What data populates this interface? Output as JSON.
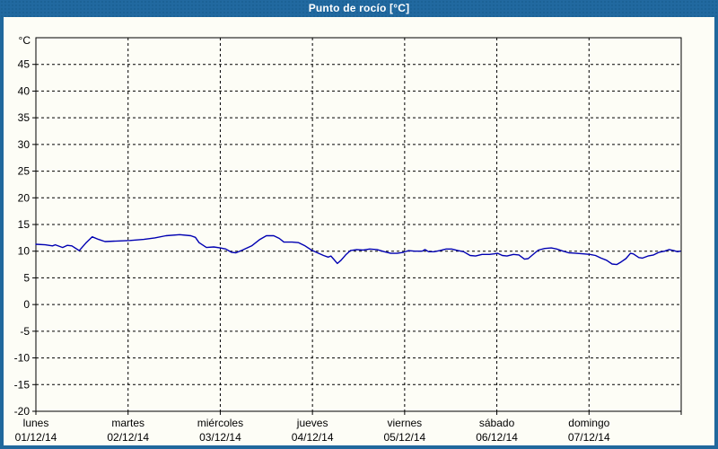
{
  "window": {
    "title": "Punto de rocío [°C]"
  },
  "colors": {
    "titlebar_bg": "#2169a0",
    "titlebar_text": "#ffffff",
    "frame_border": "#20689d",
    "content_bg": "#fdfdf6",
    "axis": "#000000",
    "grid": "#000000",
    "tick_label": "#000000",
    "line": "#0000b2"
  },
  "chart_data": {
    "type": "line",
    "title": "Punto de rocío [°C]",
    "unit_label": "°C",
    "grid": "dashed",
    "legend": "none",
    "ylim": [
      -20,
      50
    ],
    "ytick_step": 5,
    "yticks": [
      -20,
      -15,
      -10,
      -5,
      0,
      5,
      10,
      15,
      20,
      25,
      30,
      35,
      40,
      45
    ],
    "x_days": [
      {
        "name": "lunes",
        "date": "01/12/14"
      },
      {
        "name": "martes",
        "date": "02/12/14"
      },
      {
        "name": "miércoles",
        "date": "03/12/14"
      },
      {
        "name": "jueves",
        "date": "04/12/14"
      },
      {
        "name": "viernes",
        "date": "05/12/14"
      },
      {
        "name": "sábado",
        "date": "06/12/14"
      },
      {
        "name": "domingo",
        "date": "07/12/14"
      }
    ],
    "series": [
      {
        "name": "Punto de rocío",
        "color": "#0000b2",
        "points": [
          [
            0.0,
            11.3
          ],
          [
            0.1,
            11.2
          ],
          [
            0.18,
            11.0
          ],
          [
            0.21,
            11.2
          ],
          [
            0.29,
            10.7
          ],
          [
            0.34,
            11.1
          ],
          [
            0.39,
            11.0
          ],
          [
            0.47,
            10.1
          ],
          [
            0.54,
            11.5
          ],
          [
            0.61,
            12.7
          ],
          [
            0.68,
            12.2
          ],
          [
            0.75,
            11.8
          ],
          [
            0.88,
            11.9
          ],
          [
            1.02,
            12.0
          ],
          [
            1.17,
            12.2
          ],
          [
            1.29,
            12.5
          ],
          [
            1.41,
            12.9
          ],
          [
            1.56,
            13.1
          ],
          [
            1.68,
            12.9
          ],
          [
            1.73,
            12.6
          ],
          [
            1.77,
            11.6
          ],
          [
            1.85,
            10.7
          ],
          [
            1.93,
            10.8
          ],
          [
            2.0,
            10.6
          ],
          [
            2.06,
            10.4
          ],
          [
            2.12,
            9.8
          ],
          [
            2.17,
            9.7
          ],
          [
            2.24,
            10.2
          ],
          [
            2.34,
            11.0
          ],
          [
            2.43,
            12.2
          ],
          [
            2.5,
            12.9
          ],
          [
            2.58,
            12.9
          ],
          [
            2.64,
            12.4
          ],
          [
            2.69,
            11.7
          ],
          [
            2.78,
            11.7
          ],
          [
            2.85,
            11.6
          ],
          [
            2.92,
            11.0
          ],
          [
            2.99,
            10.2
          ],
          [
            3.04,
            9.8
          ],
          [
            3.12,
            9.2
          ],
          [
            3.17,
            8.9
          ],
          [
            3.2,
            9.1
          ],
          [
            3.23,
            8.5
          ],
          [
            3.27,
            7.7
          ],
          [
            3.31,
            8.3
          ],
          [
            3.36,
            9.3
          ],
          [
            3.41,
            10.1
          ],
          [
            3.48,
            10.3
          ],
          [
            3.55,
            10.2
          ],
          [
            3.62,
            10.4
          ],
          [
            3.7,
            10.3
          ],
          [
            3.78,
            9.9
          ],
          [
            3.85,
            9.6
          ],
          [
            3.92,
            9.6
          ],
          [
            3.99,
            9.8
          ],
          [
            4.04,
            10.1
          ],
          [
            4.11,
            10.0
          ],
          [
            4.19,
            10.0
          ],
          [
            4.22,
            10.3
          ],
          [
            4.26,
            9.9
          ],
          [
            4.32,
            9.9
          ],
          [
            4.38,
            10.1
          ],
          [
            4.45,
            10.4
          ],
          [
            4.51,
            10.4
          ],
          [
            4.58,
            10.1
          ],
          [
            4.64,
            9.9
          ],
          [
            4.71,
            9.2
          ],
          [
            4.77,
            9.1
          ],
          [
            4.84,
            9.4
          ],
          [
            4.92,
            9.4
          ],
          [
            4.97,
            9.5
          ],
          [
            5.01,
            9.6
          ],
          [
            5.06,
            9.2
          ],
          [
            5.11,
            9.1
          ],
          [
            5.18,
            9.4
          ],
          [
            5.24,
            9.3
          ],
          [
            5.3,
            8.5
          ],
          [
            5.34,
            8.6
          ],
          [
            5.38,
            9.2
          ],
          [
            5.45,
            10.2
          ],
          [
            5.52,
            10.5
          ],
          [
            5.59,
            10.6
          ],
          [
            5.65,
            10.4
          ],
          [
            5.72,
            10.0
          ],
          [
            5.78,
            9.7
          ],
          [
            5.86,
            9.6
          ],
          [
            5.94,
            9.5
          ],
          [
            6.01,
            9.4
          ],
          [
            6.07,
            9.2
          ],
          [
            6.13,
            8.7
          ],
          [
            6.19,
            8.3
          ],
          [
            6.25,
            7.6
          ],
          [
            6.3,
            7.5
          ],
          [
            6.35,
            8.0
          ],
          [
            6.4,
            8.6
          ],
          [
            6.45,
            9.6
          ],
          [
            6.48,
            9.5
          ],
          [
            6.54,
            8.8
          ],
          [
            6.58,
            8.7
          ],
          [
            6.64,
            9.1
          ],
          [
            6.7,
            9.3
          ],
          [
            6.76,
            9.8
          ],
          [
            6.82,
            10.0
          ],
          [
            6.87,
            10.3
          ],
          [
            6.92,
            10.1
          ],
          [
            6.96,
            9.9
          ],
          [
            6.99,
            10.0
          ]
        ]
      }
    ]
  }
}
